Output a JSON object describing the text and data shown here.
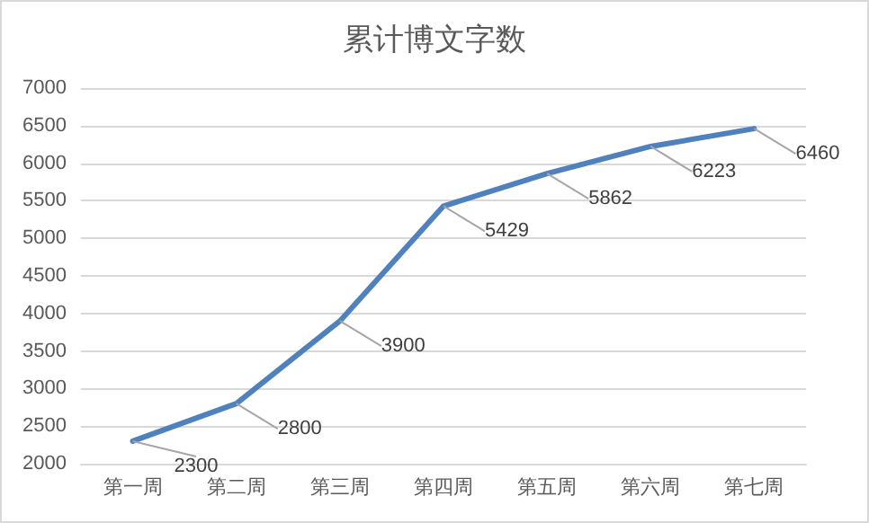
{
  "chart_data": {
    "type": "line",
    "title": "累计博文字数",
    "categories": [
      "第一周",
      "第二周",
      "第三周",
      "第四周",
      "第五周",
      "第六周",
      "第七周"
    ],
    "series": [
      {
        "color": "#4f81bd",
        "values": [
          2300,
          2800,
          3900,
          5429,
          5862,
          6223,
          6460
        ]
      }
    ],
    "ylim": [
      2000,
      7000
    ],
    "yticks": [
      2000,
      2500,
      3000,
      3500,
      4000,
      4500,
      5000,
      5500,
      6000,
      6500,
      7000
    ],
    "grid": "y",
    "data_labels": true,
    "marker": "none",
    "line_style": "solid"
  }
}
